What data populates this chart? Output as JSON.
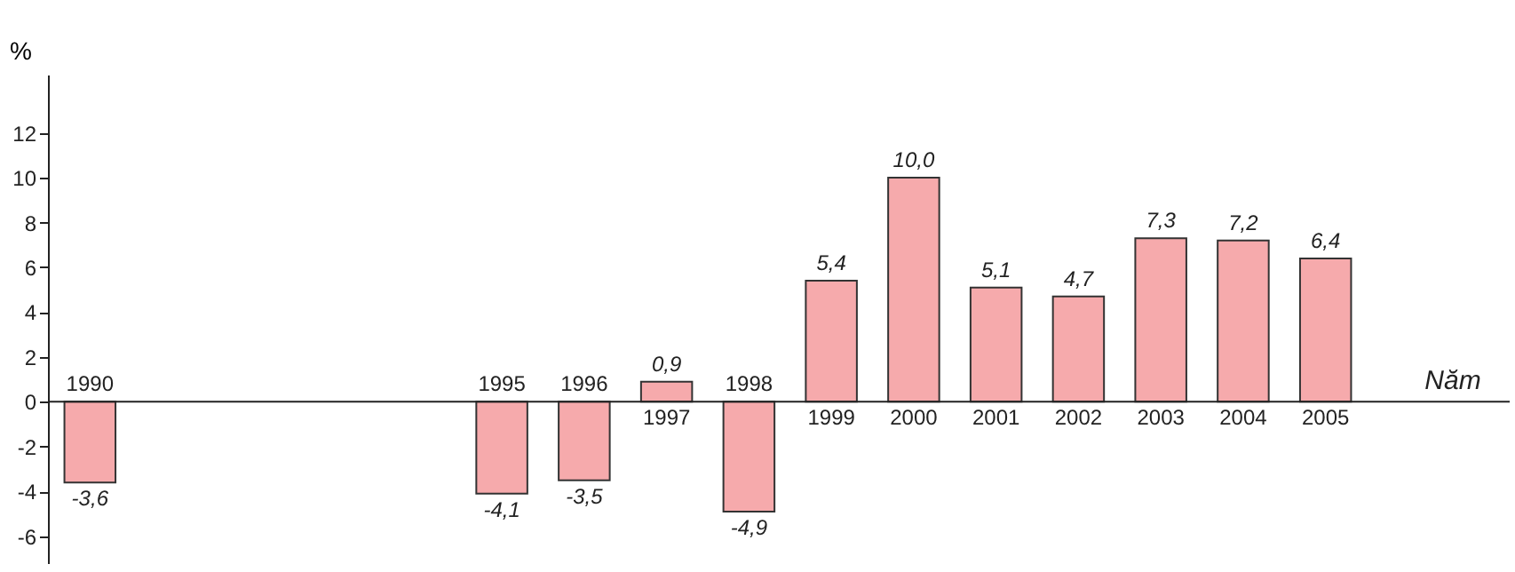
{
  "chart_data": {
    "type": "bar",
    "xlabel": "Năm",
    "ylabel": "%",
    "categories": [
      "1990",
      null,
      null,
      null,
      null,
      "1995",
      "1996",
      "1997",
      "1998",
      "1999",
      "2000",
      "2001",
      "2002",
      "2003",
      "2004",
      "2005"
    ],
    "values": [
      -3.6,
      null,
      null,
      null,
      null,
      -4.1,
      -3.5,
      0.9,
      -4.9,
      5.4,
      10.0,
      5.1,
      4.7,
      7.3,
      7.2,
      6.4
    ],
    "value_labels": [
      "-3,6",
      null,
      null,
      null,
      null,
      "-4,1",
      "-3,5",
      "0,9",
      "-4,9",
      "5,4",
      "10,0",
      "5,1",
      "4,7",
      "7,3",
      "7,2",
      "6,4"
    ],
    "color": "#f6aaac",
    "ylim": [
      -7.2,
      14.6
    ],
    "yticks": [
      -6,
      -4,
      -2,
      0,
      2,
      4,
      6,
      8,
      10,
      12
    ],
    "grid": false
  }
}
